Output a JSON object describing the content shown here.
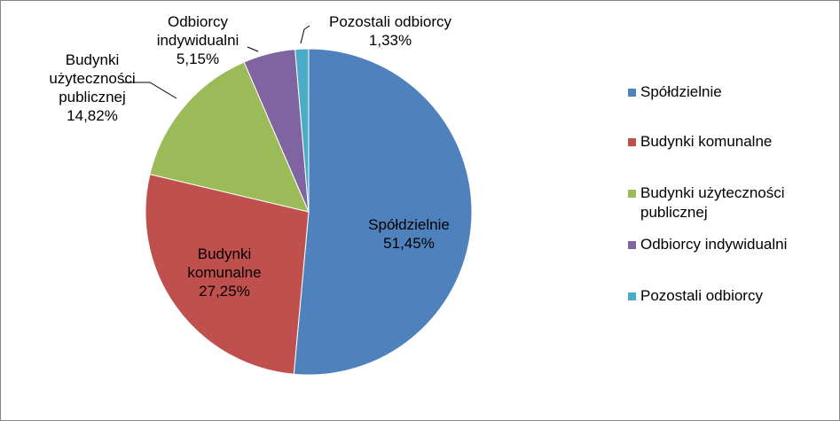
{
  "chart_data": {
    "type": "pie",
    "title": "",
    "legend_position": "right",
    "categories": [
      "Spółdzielnie",
      "Budynki komunalne",
      "Budynki użyteczności publicznej",
      "Odbiorcy indywidualni",
      "Pozostali odbiorcy"
    ],
    "values": [
      51.45,
      27.25,
      14.82,
      5.15,
      1.33
    ],
    "colors": [
      "#4f81bd",
      "#c0504d",
      "#9bbb59",
      "#8064a2",
      "#4bacc6"
    ],
    "data_labels": [
      [
        "Spółdzielnie",
        "51,45%"
      ],
      [
        "Budynki",
        "komunalne",
        "27,25%"
      ],
      [
        "Budynki",
        "użyteczności",
        "publicznej",
        "14,82%"
      ],
      [
        "Odbiorcy",
        "indywidualni",
        "5,15%"
      ],
      [
        "Pozostali odbiorcy",
        "1,33%"
      ]
    ],
    "legend": [
      [
        "Spółdzielnie"
      ],
      [
        "Budynki komunalne"
      ],
      [
        "Budynki użyteczności",
        "publicznej"
      ],
      [
        "Odbiorcy indywidualni"
      ],
      [
        "Pozostali odbiorcy"
      ]
    ]
  }
}
